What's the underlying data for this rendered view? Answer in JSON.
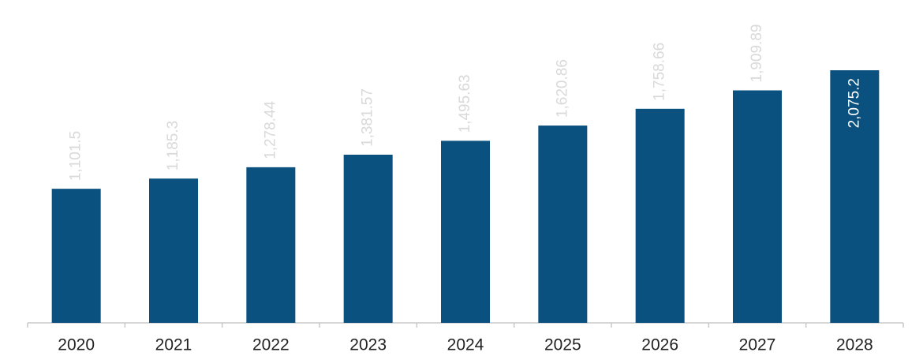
{
  "chart_data": {
    "type": "bar",
    "categories": [
      "2020",
      "2021",
      "2022",
      "2023",
      "2024",
      "2025",
      "2026",
      "2027",
      "2028"
    ],
    "values": [
      1101.5,
      1185.3,
      1278.44,
      1381.57,
      1495.63,
      1620.86,
      1758.66,
      1909.89,
      2075.2
    ],
    "value_labels": [
      "1,101.5",
      "1,185.3",
      "1,278.44",
      "1,381.57",
      "1,495.63",
      "1,620.86",
      "1,758.66",
      "1,909.89",
      "2,075.2"
    ],
    "color": "#0a5180"
  }
}
